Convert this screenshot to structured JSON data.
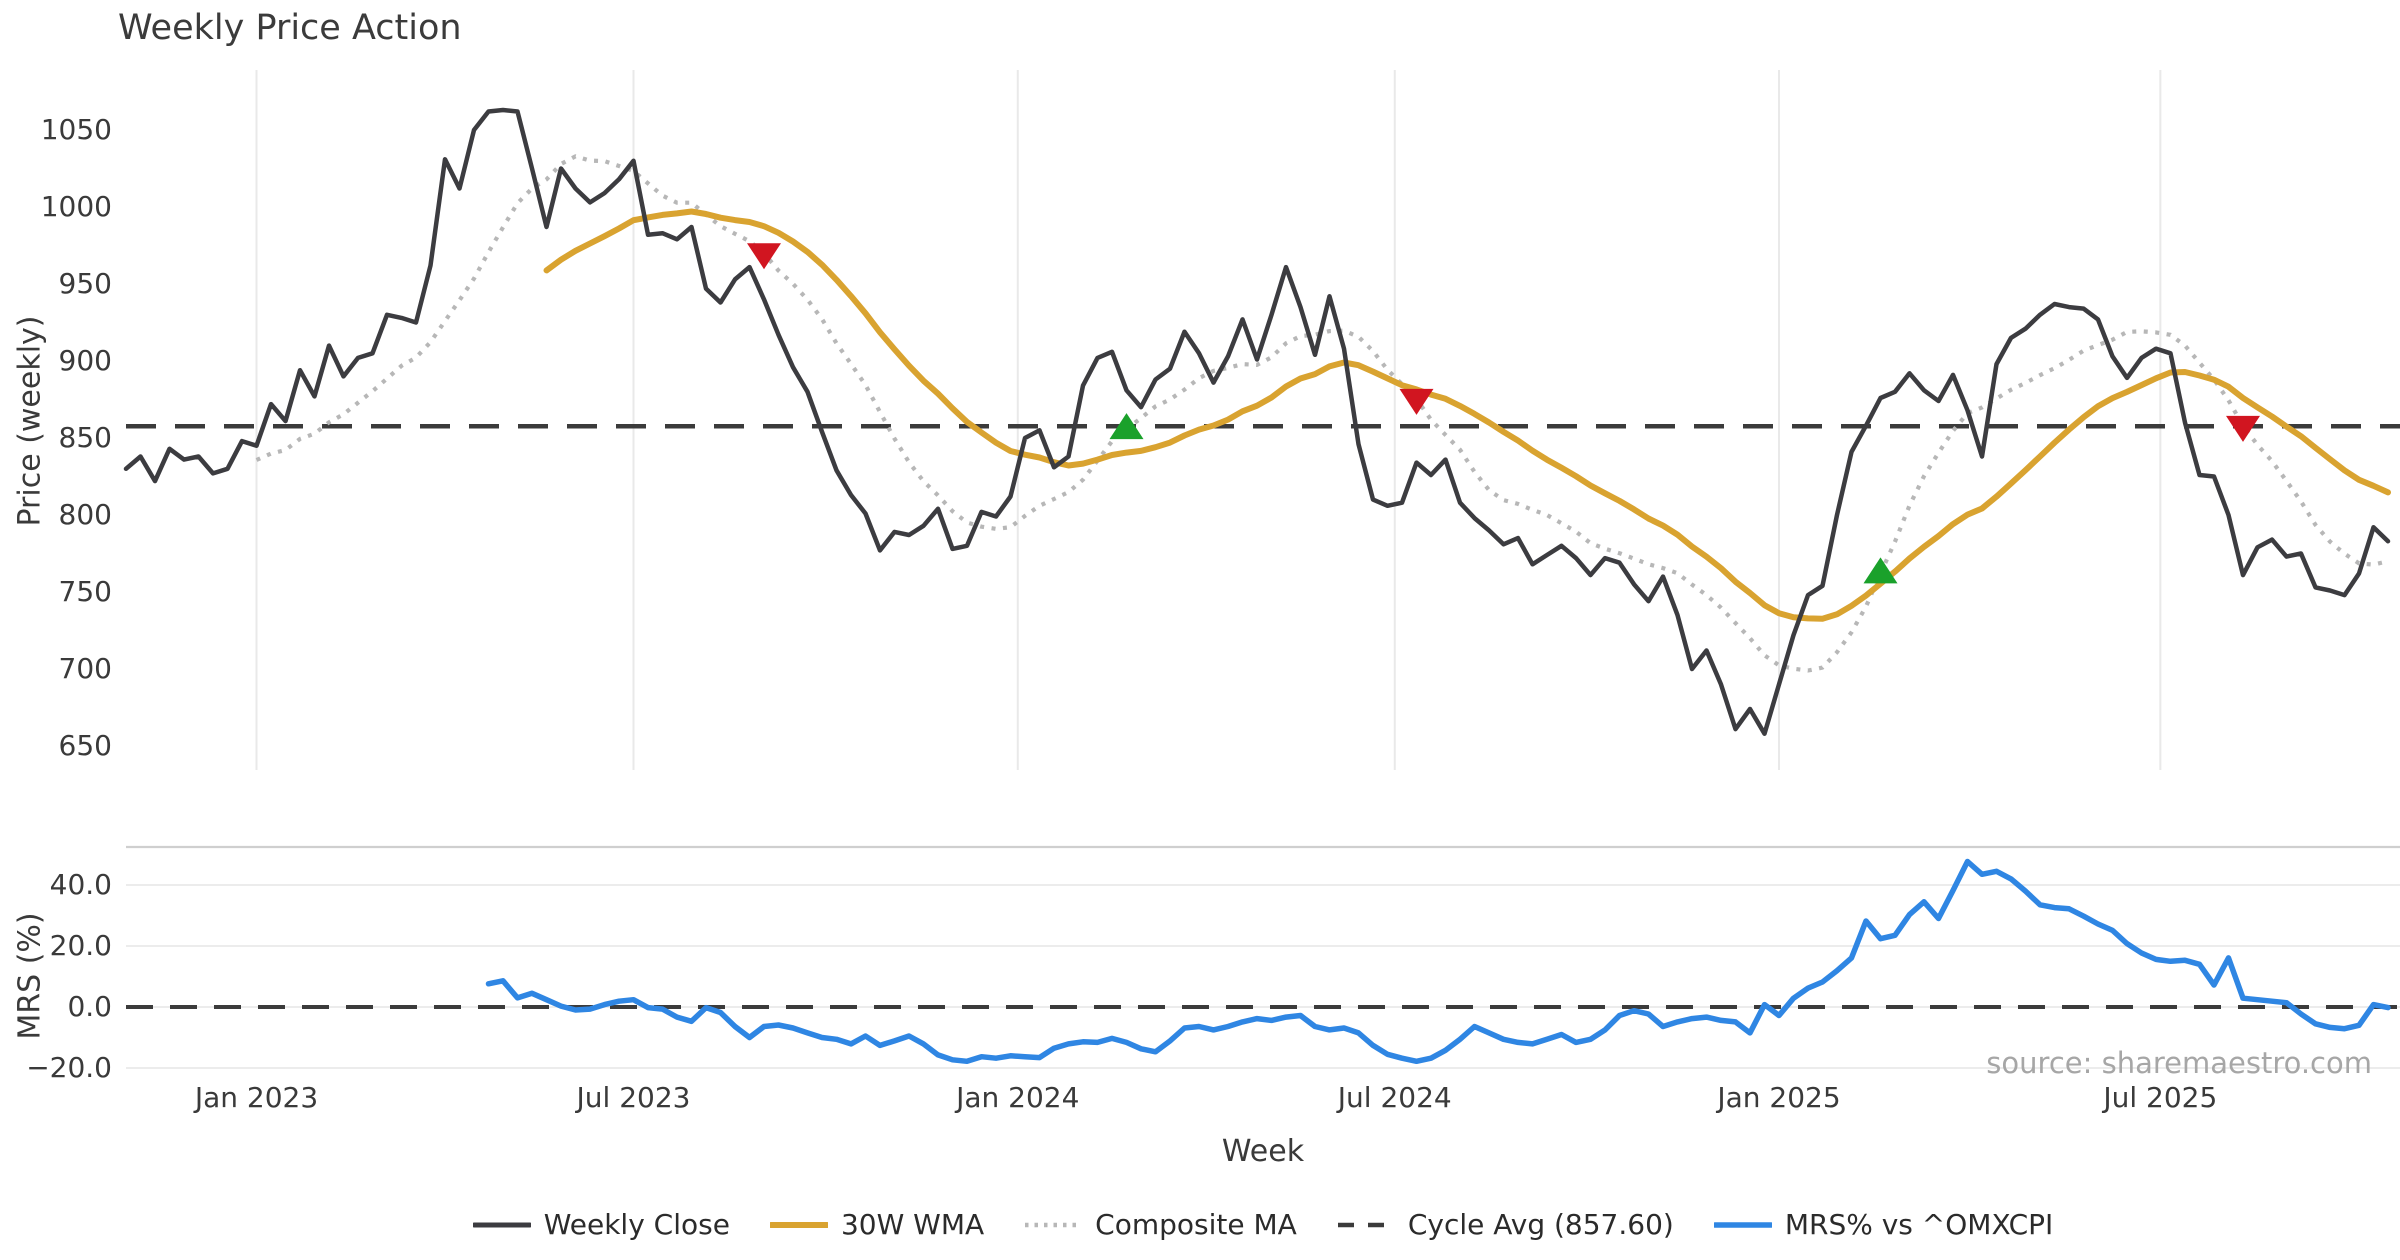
{
  "chart_data": {
    "type": "line",
    "title": "Weekly Price Action",
    "xlabel": "Week",
    "source_note": "source: sharemaestro.com",
    "cycle_avg": 857.6,
    "x": {
      "unit": "week",
      "n_weeks": 157,
      "ticks": [
        {
          "label": "Jan 2023",
          "week": 9
        },
        {
          "label": "Jul 2023",
          "week": 35
        },
        {
          "label": "Jan 2024",
          "week": 61.5
        },
        {
          "label": "Jul 2024",
          "week": 87.5
        },
        {
          "label": "Jan 2025",
          "week": 114
        },
        {
          "label": "Jul 2025",
          "week": 140.3
        }
      ]
    },
    "panels": [
      {
        "id": "price",
        "ylabel": "Price (weekly)",
        "ticks": [
          1050,
          1000,
          950,
          900,
          850,
          800,
          750,
          700,
          650
        ],
        "grid": "vertical"
      },
      {
        "id": "mrs",
        "ylabel": "MRS (%)",
        "ticks": [
          {
            "label": "40.0",
            "value": 40
          },
          {
            "label": "20.0",
            "value": 20
          },
          {
            "label": "0.0",
            "value": 0
          },
          {
            "label": "−20.0",
            "value": -20
          }
        ],
        "ylim": [
          -25,
          52
        ],
        "zero_line": 0,
        "grid": "horizontal"
      }
    ],
    "series": [
      {
        "id": "close",
        "name": "Weekly Close",
        "panel": "price",
        "color": "#3c3c40",
        "width": 4.5,
        "values": [
          830,
          838,
          822,
          843,
          836,
          838,
          827,
          830,
          848,
          845,
          872,
          861,
          894,
          877,
          910,
          890,
          902,
          905,
          930,
          928,
          925,
          962,
          1031,
          1012,
          1050,
          1062,
          1063,
          1062,
          1025,
          987,
          1025,
          1012,
          1003,
          1009,
          1018,
          1030,
          982,
          983,
          979,
          987,
          947,
          938,
          953,
          961,
          940,
          917,
          896,
          880,
          854,
          829,
          813,
          801,
          777,
          789,
          787,
          793,
          804,
          778,
          780,
          802,
          799,
          812,
          850,
          855,
          831,
          838,
          884,
          902,
          906,
          881,
          870,
          888,
          895,
          919,
          905,
          886,
          903,
          927,
          901,
          930,
          961,
          935,
          904,
          942,
          908,
          846,
          810,
          806,
          808,
          834,
          826,
          836,
          808,
          798,
          790,
          781,
          785,
          768,
          774,
          780,
          772,
          761,
          772,
          769,
          755,
          744,
          760,
          735,
          700,
          712,
          690,
          661,
          674,
          658,
          690,
          722,
          748,
          754,
          800,
          841,
          858,
          876,
          880,
          892,
          881,
          874,
          891,
          868,
          838,
          898,
          915,
          921,
          930,
          937,
          935,
          934,
          927,
          903,
          889,
          902,
          908,
          905,
          860,
          826,
          825,
          800,
          761,
          779,
          784,
          773,
          775,
          753,
          751,
          748,
          762,
          792,
          783
        ]
      },
      {
        "id": "wma",
        "name": "30W WMA",
        "panel": "price",
        "color": "#d9a330",
        "width": 6,
        "derived": {
          "from": "close",
          "method": "wma",
          "window": 30
        }
      },
      {
        "id": "composite",
        "name": "Composite MA",
        "panel": "price",
        "color": "#b7b7b7",
        "width": 4.2,
        "style": "dotted",
        "derived": {
          "from": "close",
          "method": "sma",
          "window": 10
        }
      },
      {
        "id": "cycle",
        "name": "Cycle Avg (857.60)",
        "panel": "price",
        "color": "#3b3b3b",
        "width": 4.5,
        "style": "dashed",
        "value": 857.6
      },
      {
        "id": "mrs",
        "name": "MRS% vs ^OMXCPI",
        "panel": "mrs",
        "color": "#2f86e3",
        "width": 5.5,
        "start_week": 25,
        "values": [
          7.6,
          8.6,
          3.0,
          4.5,
          2.4,
          0.3,
          -1.0,
          -0.7,
          0.8,
          1.9,
          2.4,
          -0.2,
          -0.7,
          -3.3,
          -4.7,
          -0.2,
          -1.8,
          -6.4,
          -10.0,
          -6.4,
          -5.9,
          -6.9,
          -8.5,
          -10.0,
          -10.6,
          -12.1,
          -9.5,
          -12.6,
          -11.1,
          -9.5,
          -12.1,
          -15.7,
          -17.3,
          -17.8,
          -16.3,
          -16.8,
          -16.0,
          -16.3,
          -16.6,
          -13.5,
          -12.1,
          -11.4,
          -11.6,
          -10.3,
          -11.6,
          -13.7,
          -14.7,
          -11.1,
          -6.9,
          -6.4,
          -7.5,
          -6.4,
          -4.9,
          -3.8,
          -4.4,
          -3.3,
          -2.8,
          -6.4,
          -7.5,
          -6.9,
          -8.5,
          -12.6,
          -15.5,
          -16.8,
          -17.8,
          -16.8,
          -14.2,
          -10.6,
          -6.4,
          -8.5,
          -10.6,
          -11.6,
          -12.1,
          -10.6,
          -9.0,
          -11.6,
          -10.6,
          -7.5,
          -2.8,
          -1.2,
          -2.3,
          -6.4,
          -4.9,
          -3.8,
          -3.3,
          -4.4,
          -4.9,
          -8.5,
          0.8,
          -2.8,
          2.9,
          6.2,
          8.2,
          11.9,
          16.1,
          28.2,
          22.4,
          23.5,
          30.3,
          34.5,
          29.0,
          38.2,
          47.7,
          43.5,
          44.5,
          42.0,
          38.0,
          33.5,
          32.6,
          32.2,
          29.8,
          27.2,
          25.1,
          20.8,
          17.7,
          15.6,
          15.0,
          15.3,
          14.0,
          7.2,
          16.1,
          2.9,
          2.4,
          1.9,
          1.4,
          -2.3,
          -5.5,
          -6.7,
          -7.1,
          -6.0,
          0.8,
          -0.2
        ]
      }
    ],
    "markers": [
      {
        "type": "sell",
        "week": 44,
        "shape": "triangle-down",
        "color": "#d11520"
      },
      {
        "type": "buy",
        "week": 69,
        "shape": "triangle-up",
        "color": "#1aa12b"
      },
      {
        "type": "sell",
        "week": 89,
        "shape": "triangle-down",
        "color": "#d11520"
      },
      {
        "type": "buy",
        "week": 121,
        "shape": "triangle-up",
        "color": "#1aa12b"
      },
      {
        "type": "sell",
        "week": 146,
        "shape": "triangle-down",
        "color": "#d11520"
      }
    ],
    "legend": [
      {
        "label": "Weekly Close",
        "style": "solid",
        "color": "#3c3c40",
        "weight": 5
      },
      {
        "label": "30W WMA",
        "style": "solid",
        "color": "#d9a330",
        "weight": 6
      },
      {
        "label": "Composite MA",
        "style": "dotted",
        "color": "#b7b7b7",
        "weight": 4.5
      },
      {
        "label": "Cycle Avg (857.60)",
        "style": "dashed",
        "color": "#3b3b3b",
        "weight": 4.5
      },
      {
        "label": "MRS% vs ^OMXCPI",
        "style": "solid",
        "color": "#2f86e3",
        "weight": 5.5
      }
    ],
    "grid_colors": {
      "vertical": "#e9e9e9",
      "horizontal": "#ececec",
      "panel_boundary": "#cfcfcf"
    }
  }
}
